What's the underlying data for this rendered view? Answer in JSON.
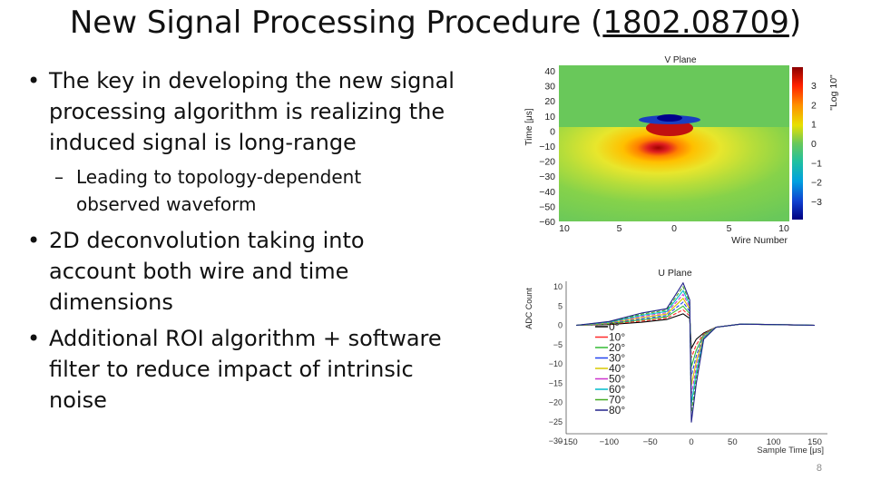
{
  "slide": {
    "title_text": "New Signal Processing Procedure (",
    "title_link": "1802.08709",
    "title_close": ")",
    "page_number": "8"
  },
  "bullets": [
    {
      "level": 1,
      "text": "The key in developing the new signal processing algorithm is realizing the induced signal is long-range",
      "lines": [
        "The key in developing the new signal",
        "processing algorithm is realizing the",
        "induced signal is long-range"
      ]
    },
    {
      "level": 2,
      "text": "Leading to topology-dependent observed waveform",
      "lines": [
        "Leading to topology-dependent",
        "observed waveform"
      ]
    },
    {
      "level": 1,
      "text": "2D deconvolution taking into account both wire and time dimensions",
      "lines": [
        "2D deconvolution taking into",
        "account both wire and time",
        "dimensions"
      ]
    },
    {
      "level": 1,
      "text": "Additional ROI algorithm + software filter to reduce impact of intrinsic noise",
      "lines": [
        "Additional ROI algorithm + software",
        "filter to reduce impact of intrinsic",
        "noise"
      ]
    }
  ],
  "chart_data": [
    {
      "type": "heatmap",
      "title": "V Plane",
      "xlabel": "Wire Number",
      "ylabel": "Time [μs]",
      "x_ticks": [
        "10",
        "5",
        "0",
        "5",
        "10"
      ],
      "y_ticks": [
        "40",
        "30",
        "20",
        "10",
        "0",
        "−10",
        "−20",
        "−30",
        "−40",
        "−50",
        "−60"
      ],
      "colorbar_label": "\"Log 10\"",
      "colorbar_ticks": [
        "3",
        "2",
        "1",
        "0",
        "−1",
        "−2",
        "−3"
      ],
      "colors": {
        "high": "#8b0000",
        "mid_high": "#ff8c00",
        "zero": "#69c85a",
        "low": "#00008b"
      }
    },
    {
      "type": "line",
      "title": "U Plane",
      "xlabel": "Sample Time [μs]",
      "ylabel": "ADC Count",
      "x_ticks": [
        "−150",
        "−100",
        "−50",
        "0",
        "50",
        "100",
        "150"
      ],
      "y_ticks": [
        "10",
        "5",
        "0",
        "−5",
        "−10",
        "−15",
        "−20",
        "−25",
        "−30"
      ],
      "legend": [
        "0°",
        "10°",
        "20°",
        "30°",
        "40°",
        "50°",
        "60°",
        "70°",
        "80°"
      ],
      "series_colors": [
        "#000000",
        "#ff2a2a",
        "#33bb33",
        "#2244ee",
        "#d8c800",
        "#cc33cc",
        "#00bbcc",
        "#44aa22",
        "#22228a"
      ]
    }
  ]
}
